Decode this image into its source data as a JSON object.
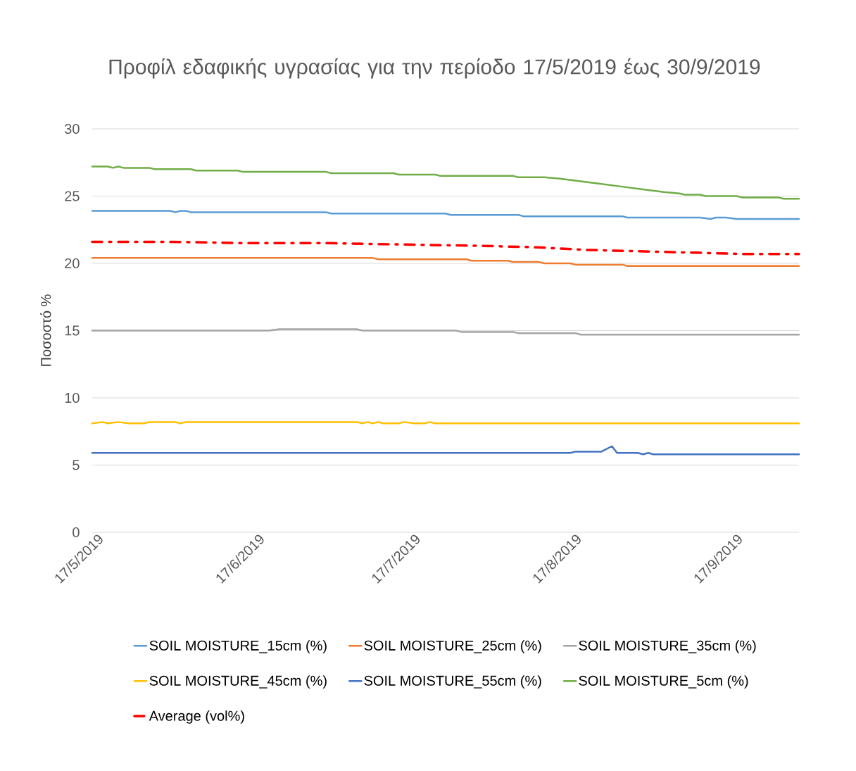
{
  "chart_data": {
    "type": "line",
    "title": "Προφίλ εδαφικής υγρασίας για την περίοδο 17/5/2019 έως 30/9/2019",
    "ylabel": "Ποσοστό %",
    "xlim": [
      "2019-05-17",
      "2019-09-30"
    ],
    "xticks": [
      {
        "value": "2019-05-17",
        "label": "17/5/2019"
      },
      {
        "value": "2019-06-17",
        "label": "17/6/2019"
      },
      {
        "value": "2019-07-17",
        "label": "17/7/2019"
      },
      {
        "value": "2019-08-17",
        "label": "17/8/2019"
      },
      {
        "value": "2019-09-17",
        "label": "17/9/2019"
      }
    ],
    "ylim": [
      0,
      30
    ],
    "yticks": [
      0,
      5,
      10,
      15,
      20,
      25,
      30
    ],
    "grid": "y",
    "legend": "bottom",
    "marker": "none",
    "series": [
      {
        "name": "SOIL MOISTURE_15cm (%)",
        "color": "#5b9bd5",
        "line_style": "solid",
        "x": [
          "2019-05-17",
          "2019-06-01",
          "2019-06-02",
          "2019-06-03",
          "2019-06-04",
          "2019-06-05",
          "2019-07-01",
          "2019-07-02",
          "2019-07-24",
          "2019-07-25",
          "2019-08-07",
          "2019-08-08",
          "2019-08-27",
          "2019-08-28",
          "2019-09-11",
          "2019-09-13",
          "2019-09-14",
          "2019-09-16",
          "2019-09-18",
          "2019-09-30"
        ],
        "values": [
          23.9,
          23.9,
          23.8,
          23.9,
          23.9,
          23.8,
          23.8,
          23.7,
          23.7,
          23.6,
          23.6,
          23.5,
          23.5,
          23.4,
          23.4,
          23.3,
          23.4,
          23.4,
          23.3,
          23.3
        ]
      },
      {
        "name": "SOIL MOISTURE_25cm (%)",
        "color": "#ed7d31",
        "line_style": "solid",
        "x": [
          "2019-05-17",
          "2019-07-10",
          "2019-07-11",
          "2019-07-28",
          "2019-07-29",
          "2019-08-05",
          "2019-08-06",
          "2019-08-11",
          "2019-08-12",
          "2019-08-17",
          "2019-08-18",
          "2019-08-27",
          "2019-08-28",
          "2019-09-30"
        ],
        "values": [
          20.4,
          20.4,
          20.3,
          20.3,
          20.2,
          20.2,
          20.1,
          20.1,
          20.0,
          20.0,
          19.9,
          19.9,
          19.8,
          19.8
        ]
      },
      {
        "name": "SOIL MOISTURE_35cm (%)",
        "color": "#a5a5a5",
        "line_style": "solid",
        "x": [
          "2019-05-17",
          "2019-06-20",
          "2019-06-22",
          "2019-07-07",
          "2019-07-08",
          "2019-07-26",
          "2019-07-27",
          "2019-08-06",
          "2019-08-07",
          "2019-08-18",
          "2019-08-19",
          "2019-09-30"
        ],
        "values": [
          15.0,
          15.0,
          15.1,
          15.1,
          15.0,
          15.0,
          14.9,
          14.9,
          14.8,
          14.8,
          14.7,
          14.7
        ]
      },
      {
        "name": "SOIL MOISTURE_45cm (%)",
        "color": "#ffc000",
        "line_style": "solid",
        "x": [
          "2019-05-17",
          "2019-05-19",
          "2019-05-20",
          "2019-05-22",
          "2019-05-24",
          "2019-05-27",
          "2019-05-28",
          "2019-06-02",
          "2019-06-03",
          "2019-06-04",
          "2019-07-07",
          "2019-07-08",
          "2019-07-09",
          "2019-07-10",
          "2019-07-11",
          "2019-07-12",
          "2019-07-15",
          "2019-07-16",
          "2019-07-18",
          "2019-07-20",
          "2019-07-21",
          "2019-07-22",
          "2019-09-30"
        ],
        "values": [
          8.1,
          8.2,
          8.1,
          8.2,
          8.1,
          8.1,
          8.2,
          8.2,
          8.1,
          8.2,
          8.2,
          8.1,
          8.2,
          8.1,
          8.2,
          8.1,
          8.1,
          8.2,
          8.1,
          8.1,
          8.2,
          8.1,
          8.1
        ]
      },
      {
        "name": "SOIL MOISTURE_55cm (%)",
        "color": "#4472c4",
        "line_style": "solid",
        "x": [
          "2019-05-17",
          "2019-08-17",
          "2019-08-18",
          "2019-08-23",
          "2019-08-25",
          "2019-08-26",
          "2019-08-30",
          "2019-08-31",
          "2019-09-01",
          "2019-09-02",
          "2019-09-30"
        ],
        "values": [
          5.9,
          5.9,
          6.0,
          6.0,
          6.4,
          5.9,
          5.9,
          5.8,
          5.9,
          5.8,
          5.8
        ]
      },
      {
        "name": "SOIL MOISTURE_5cm (%)",
        "color": "#70ad47",
        "line_style": "solid",
        "x": [
          "2019-05-17",
          "2019-05-20",
          "2019-05-21",
          "2019-05-22",
          "2019-05-23",
          "2019-05-28",
          "2019-05-29",
          "2019-06-05",
          "2019-06-06",
          "2019-06-14",
          "2019-06-15",
          "2019-07-01",
          "2019-07-02",
          "2019-07-14",
          "2019-07-15",
          "2019-07-22",
          "2019-07-23",
          "2019-08-06",
          "2019-08-07",
          "2019-08-12",
          "2019-08-15",
          "2019-08-19",
          "2019-08-23",
          "2019-08-27",
          "2019-08-31",
          "2019-09-04",
          "2019-09-07",
          "2019-09-08",
          "2019-09-11",
          "2019-09-12",
          "2019-09-18",
          "2019-09-19",
          "2019-09-26",
          "2019-09-27",
          "2019-09-30"
        ],
        "values": [
          27.2,
          27.2,
          27.1,
          27.2,
          27.1,
          27.1,
          27.0,
          27.0,
          26.9,
          26.9,
          26.8,
          26.8,
          26.7,
          26.7,
          26.6,
          26.6,
          26.5,
          26.5,
          26.4,
          26.4,
          26.3,
          26.1,
          25.9,
          25.7,
          25.5,
          25.3,
          25.2,
          25.1,
          25.1,
          25.0,
          25.0,
          24.9,
          24.9,
          24.8,
          24.8
        ]
      },
      {
        "name": "Average (vol%)",
        "color": "#ff0000",
        "line_style": "dashed",
        "x": [
          "2019-05-17",
          "2019-06-01",
          "2019-06-16",
          "2019-07-01",
          "2019-07-16",
          "2019-07-31",
          "2019-08-10",
          "2019-08-20",
          "2019-08-30",
          "2019-09-09",
          "2019-09-19",
          "2019-09-30"
        ],
        "values": [
          21.6,
          21.6,
          21.5,
          21.5,
          21.4,
          21.3,
          21.2,
          21.0,
          20.9,
          20.8,
          20.7,
          20.7
        ]
      }
    ]
  }
}
